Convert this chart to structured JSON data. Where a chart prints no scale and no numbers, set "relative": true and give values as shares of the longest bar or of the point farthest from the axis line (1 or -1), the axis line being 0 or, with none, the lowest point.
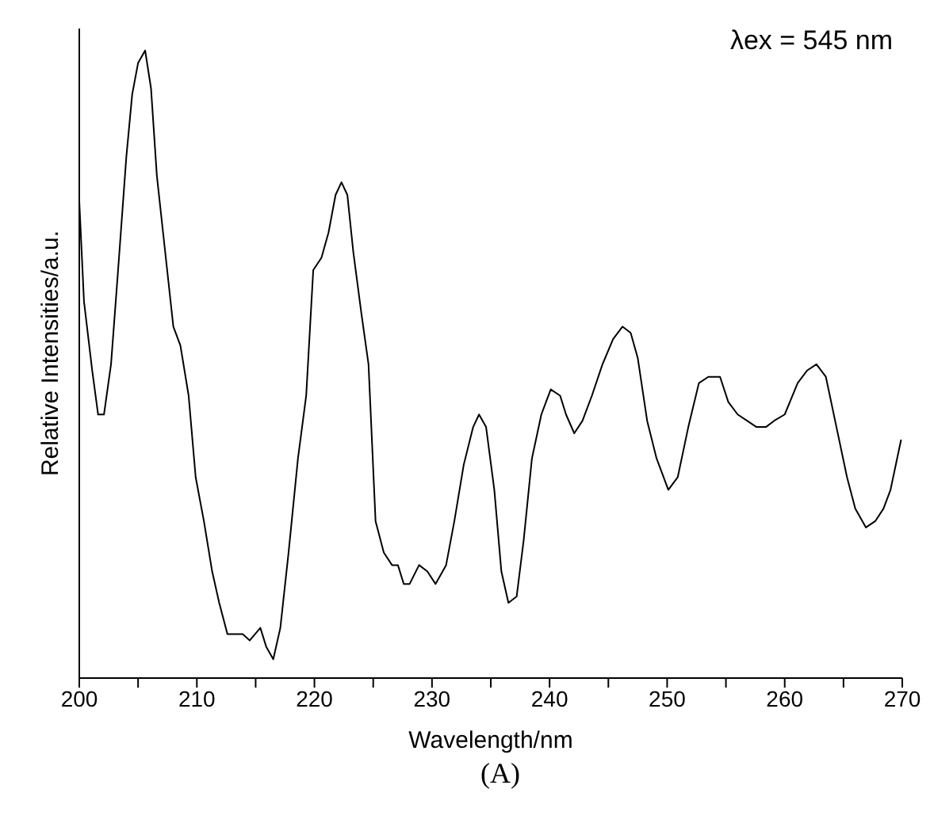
{
  "chart_data": {
    "type": "line",
    "relative": true,
    "xlabel": "Wavelength/nm",
    "ylabel": "Relative Intensities/a.u.",
    "annotations": [
      "λex = 545 nm",
      "(A)"
    ],
    "xlim": [
      200,
      270
    ],
    "xticks": [
      200,
      {
        "value": 205,
        "label": null
      },
      210,
      {
        "value": 215,
        "label": null
      },
      220,
      {
        "value": 225,
        "label": null
      },
      230,
      {
        "value": 235,
        "label": null
      },
      240,
      {
        "value": 245,
        "label": null
      },
      250,
      {
        "value": 255,
        "label": null
      },
      260,
      {
        "value": 265,
        "label": null
      },
      270
    ],
    "grid": false,
    "legend": false,
    "marker": "none",
    "line_style": "solid",
    "x": [
      200.0,
      200.4,
      201.1,
      201.6,
      202.1,
      202.7,
      203.3,
      204.0,
      204.5,
      205.0,
      205.6,
      206.1,
      206.6,
      207.3,
      208.0,
      208.6,
      209.3,
      209.9,
      210.6,
      211.3,
      211.9,
      212.6,
      213.3,
      213.9,
      214.5,
      215.4,
      215.9,
      216.5,
      217.1,
      217.8,
      218.6,
      219.3,
      219.9,
      220.6,
      221.2,
      221.8,
      222.3,
      222.8,
      223.3,
      224.0,
      224.6,
      225.2,
      225.9,
      226.6,
      227.1,
      227.6,
      228.1,
      228.9,
      229.6,
      230.3,
      231.2,
      231.9,
      232.7,
      233.5,
      234.0,
      234.6,
      235.3,
      235.9,
      236.5,
      237.2,
      237.8,
      238.5,
      239.3,
      240.1,
      240.9,
      241.4,
      242.1,
      242.8,
      243.6,
      244.5,
      245.4,
      246.2,
      246.9,
      247.5,
      248.3,
      249.1,
      250.1,
      250.9,
      251.8,
      252.7,
      253.5,
      254.5,
      255.2,
      256.0,
      256.8,
      257.6,
      258.4,
      259.1,
      260.0,
      261.1,
      261.9,
      262.7,
      263.5,
      264.4,
      265.3,
      266.0,
      266.9,
      267.7,
      268.4,
      269.0,
      269.9
    ],
    "series": [
      {
        "color": "#000000",
        "values": [
          0.76,
          0.6,
          0.49,
          0.42,
          0.42,
          0.5,
          0.65,
          0.83,
          0.93,
          0.98,
          1.0,
          0.94,
          0.8,
          0.68,
          0.56,
          0.53,
          0.45,
          0.32,
          0.25,
          0.17,
          0.12,
          0.07,
          0.07,
          0.07,
          0.06,
          0.08,
          0.05,
          0.03,
          0.08,
          0.2,
          0.35,
          0.45,
          0.65,
          0.67,
          0.71,
          0.77,
          0.79,
          0.77,
          0.68,
          0.58,
          0.5,
          0.25,
          0.2,
          0.18,
          0.18,
          0.15,
          0.15,
          0.18,
          0.17,
          0.15,
          0.18,
          0.25,
          0.34,
          0.4,
          0.42,
          0.4,
          0.3,
          0.17,
          0.12,
          0.13,
          0.22,
          0.35,
          0.42,
          0.46,
          0.45,
          0.42,
          0.39,
          0.41,
          0.45,
          0.5,
          0.54,
          0.56,
          0.55,
          0.51,
          0.41,
          0.35,
          0.3,
          0.32,
          0.4,
          0.47,
          0.48,
          0.48,
          0.44,
          0.42,
          0.41,
          0.4,
          0.4,
          0.41,
          0.42,
          0.47,
          0.49,
          0.5,
          0.48,
          0.4,
          0.32,
          0.27,
          0.24,
          0.25,
          0.27,
          0.3,
          0.38
        ]
      }
    ]
  }
}
